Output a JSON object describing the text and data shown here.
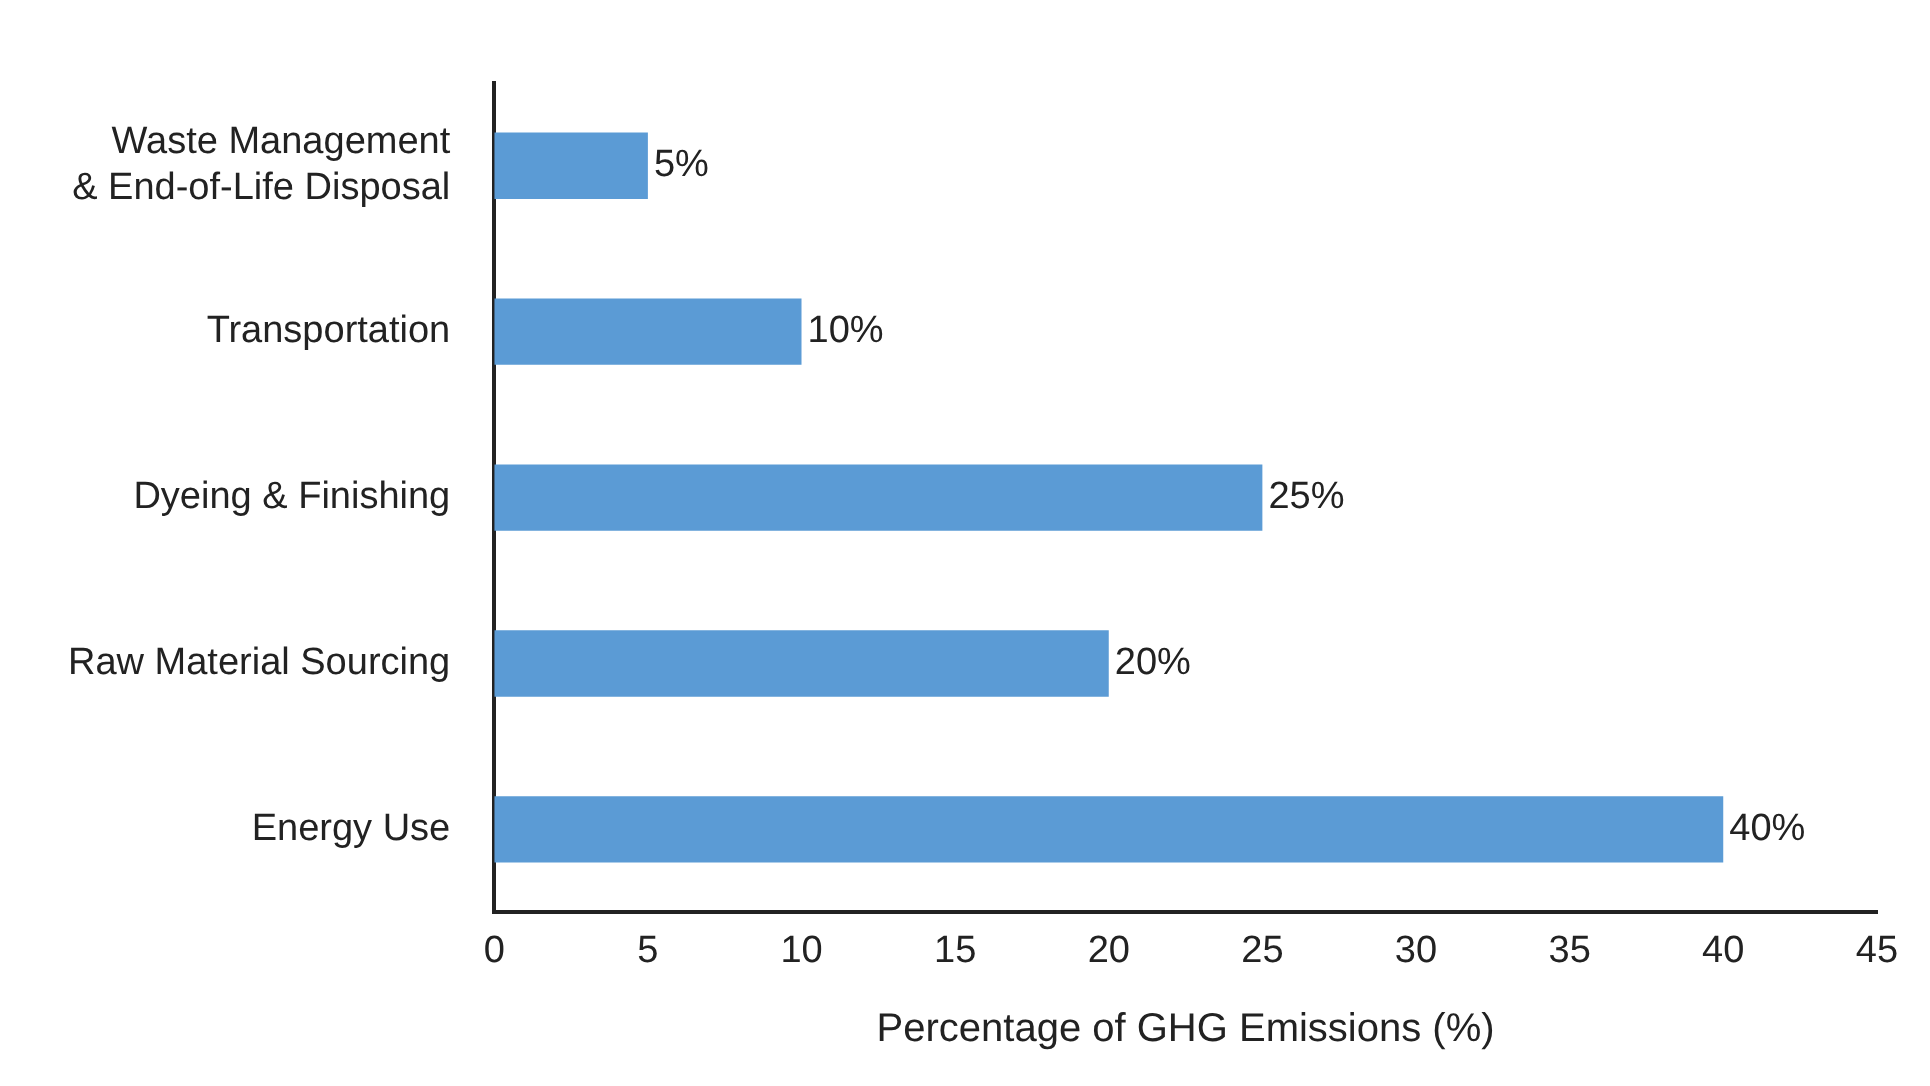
{
  "chart_data": {
    "type": "bar",
    "orientation": "horizontal",
    "xlabel": "Percentage of GHG Emissions (%)",
    "categories": [
      "Waste Management\n& End-of-Life Disposal",
      "Transportation",
      "Dyeing & Finishing",
      "Raw Material Sourcing",
      "Energy Use"
    ],
    "values": [
      5,
      10,
      25,
      20,
      40
    ],
    "value_labels": [
      "5%",
      "10%",
      "25%",
      "20%",
      "40%"
    ],
    "color": "#5b9bd5",
    "xlim": [
      0,
      45
    ],
    "xticks": [
      0,
      5,
      10,
      15,
      20,
      25,
      30,
      35,
      40,
      45
    ],
    "grid": false,
    "legend": false
  }
}
